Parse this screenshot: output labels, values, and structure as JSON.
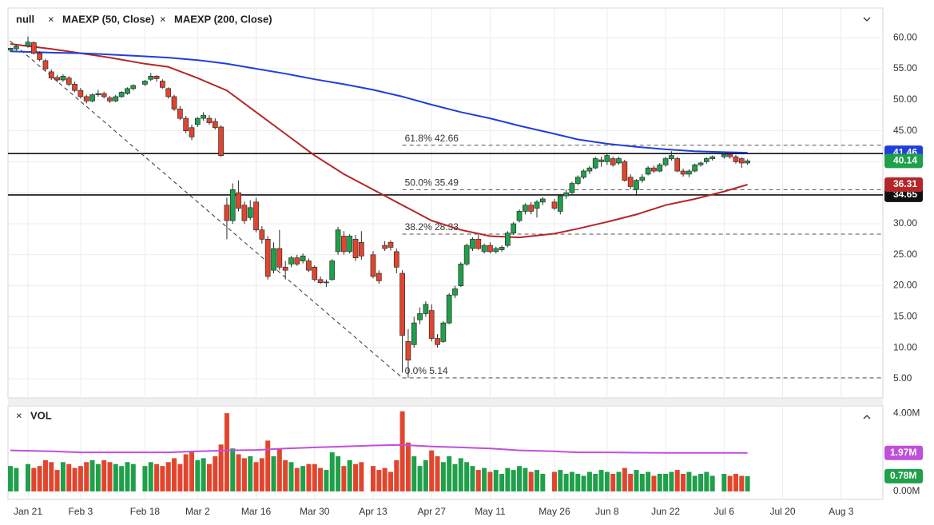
{
  "chart_data": {
    "type": "candlestick",
    "name": "null",
    "up_color": "#1fa04a",
    "down_color": "#e2452d",
    "x": [
      "Jan 16",
      "Jan 17",
      "Jan 21",
      "Jan 22",
      "Jan 23",
      "Jan 24",
      "Jan 27",
      "Jan 28",
      "Jan 29",
      "Jan 30",
      "Jan 31",
      "Feb 3",
      "Feb 4",
      "Feb 5",
      "Feb 6",
      "Feb 7",
      "Feb 10",
      "Feb 11",
      "Feb 12",
      "Feb 13",
      "Feb 14",
      "Feb 18",
      "Feb 19",
      "Feb 20",
      "Feb 21",
      "Feb 24",
      "Feb 25",
      "Feb 26",
      "Feb 27",
      "Feb 28",
      "Mar 2",
      "Mar 3",
      "Mar 4",
      "Mar 5",
      "Mar 6",
      "Mar 9",
      "Mar 10",
      "Mar 11",
      "Mar 12",
      "Mar 13",
      "Mar 16",
      "Mar 17",
      "Mar 18",
      "Mar 19",
      "Mar 20",
      "Mar 23",
      "Mar 24",
      "Mar 25",
      "Mar 26",
      "Mar 27",
      "Mar 30",
      "Mar 31",
      "Apr 1",
      "Apr 2",
      "Apr 3",
      "Apr 6",
      "Apr 7",
      "Apr 8",
      "Apr 9",
      "Apr 13",
      "Apr 14",
      "Apr 15",
      "Apr 16",
      "Apr 17",
      "Apr 20",
      "Apr 21",
      "Apr 22",
      "Apr 23",
      "Apr 24",
      "Apr 27",
      "Apr 28",
      "Apr 29",
      "Apr 30",
      "May 1",
      "May 4",
      "May 5",
      "May 6",
      "May 7",
      "May 8",
      "May 11",
      "May 12",
      "May 13",
      "May 14",
      "May 15",
      "May 18",
      "May 19",
      "May 20",
      "May 21",
      "May 22",
      "May 26",
      "May 27",
      "May 28",
      "May 29",
      "Jun 1",
      "Jun 2",
      "Jun 3",
      "Jun 4",
      "Jun 5",
      "Jun 8",
      "Jun 9",
      "Jun 10",
      "Jun 11",
      "Jun 12",
      "Jun 15",
      "Jun 16",
      "Jun 17",
      "Jun 18",
      "Jun 19",
      "Jun 22",
      "Jun 23",
      "Jun 24",
      "Jun 25",
      "Jun 26",
      "Jun 29",
      "Jun 30",
      "Jul 1",
      "Jul 2",
      "Jul 6",
      "Jul 7",
      "Jul 8",
      "Jul 9",
      "Jul 10"
    ],
    "ohlc": [
      [
        58,
        58.4,
        57.7,
        58.3
      ],
      [
        58.2,
        58.8,
        57.9,
        58.6
      ],
      [
        58.7,
        60.2,
        58.4,
        59.3
      ],
      [
        59.2,
        59.4,
        57.3,
        57.5
      ],
      [
        57.5,
        57.8,
        56.2,
        56.5
      ],
      [
        56.3,
        56.6,
        54.6,
        55
      ],
      [
        54.5,
        54.9,
        53.2,
        53.5
      ],
      [
        53.6,
        54,
        52.8,
        53.2
      ],
      [
        53.2,
        54.1,
        52.9,
        53.8
      ],
      [
        53.5,
        53.8,
        52.2,
        52.5
      ],
      [
        52.5,
        52.9,
        51.2,
        51.5
      ],
      [
        51.5,
        51.9,
        50.2,
        50.5
      ],
      [
        50.5,
        50.8,
        49.4,
        49.8
      ],
      [
        49.8,
        51,
        49.6,
        50.8
      ],
      [
        50.8,
        51.6,
        50.5,
        51
      ],
      [
        51,
        51.3,
        50.2,
        50.5
      ],
      [
        50.3,
        50.6,
        49.5,
        49.8
      ],
      [
        49.8,
        50.8,
        49.6,
        50.5
      ],
      [
        50.5,
        51.4,
        50.3,
        51.2
      ],
      [
        51,
        52,
        50.8,
        51.8
      ],
      [
        51.8,
        52.5,
        51.5,
        52.3
      ],
      [
        52.5,
        53.2,
        52.2,
        53
      ],
      [
        53.3,
        54.3,
        53,
        53.8
      ],
      [
        53.8,
        54,
        52.9,
        53.4
      ],
      [
        53,
        53.3,
        51.8,
        52
      ],
      [
        51.8,
        52,
        50.2,
        50.5
      ],
      [
        50.5,
        50.8,
        48.2,
        48.5
      ],
      [
        48.5,
        49,
        46.7,
        47
      ],
      [
        47,
        47.4,
        44.6,
        45
      ],
      [
        45.5,
        46,
        43.5,
        44
      ],
      [
        46,
        47.2,
        45.6,
        47
      ],
      [
        47,
        48,
        46.6,
        47.5
      ],
      [
        47,
        47.5,
        46,
        46.3
      ],
      [
        46.5,
        47,
        45.2,
        45.5
      ],
      [
        45.6,
        45.9,
        40.8,
        41
      ],
      [
        33,
        34.2,
        27.5,
        30.5
      ],
      [
        30.5,
        36.5,
        30,
        35.5
      ],
      [
        35,
        37,
        32,
        32.5
      ],
      [
        33,
        33.6,
        30,
        30.5
      ],
      [
        31,
        33.8,
        30.6,
        32.6
      ],
      [
        33.5,
        34.2,
        28.6,
        29
      ],
      [
        29,
        29.6,
        26.8,
        27.5
      ],
      [
        27.5,
        28,
        21,
        21.5
      ],
      [
        22.5,
        27,
        22,
        26
      ],
      [
        26,
        29,
        22.5,
        23
      ],
      [
        23,
        24,
        21,
        22.5
      ],
      [
        23.5,
        24.8,
        23,
        24.5
      ],
      [
        24.5,
        25,
        23.2,
        23.5
      ],
      [
        24,
        25.2,
        23.6,
        24.8
      ],
      [
        24,
        24.4,
        22.2,
        22.5
      ],
      [
        23,
        23.3,
        20.7,
        21
      ],
      [
        21,
        21.5,
        20.3,
        20.5
      ],
      [
        20.5,
        21,
        19.8,
        20.6
      ],
      [
        21,
        24.3,
        20.8,
        24
      ],
      [
        25.5,
        29.5,
        25,
        29
      ],
      [
        28,
        28.8,
        25,
        25.5
      ],
      [
        25.5,
        28.3,
        25.2,
        28
      ],
      [
        27.5,
        28.2,
        24,
        24.5
      ],
      [
        27,
        28.8,
        24.2,
        24.8
      ],
      [
        25,
        25.6,
        21.2,
        21.5
      ],
      [
        22,
        22.5,
        20.3,
        20.8
      ],
      [
        26.5,
        27.2,
        25.6,
        26
      ],
      [
        27,
        27.3,
        25.7,
        26.2
      ],
      [
        25.5,
        26,
        22,
        23
      ],
      [
        22,
        22.5,
        6,
        12
      ],
      [
        11,
        13,
        5.14,
        8
      ],
      [
        10.5,
        15,
        10,
        14
      ],
      [
        14.5,
        16.5,
        13.8,
        15.5
      ],
      [
        15.5,
        17.5,
        15,
        17
      ],
      [
        16,
        17,
        11,
        11.5
      ],
      [
        11.5,
        12.2,
        10,
        10.5
      ],
      [
        11,
        14.3,
        10.8,
        14
      ],
      [
        14,
        18.8,
        13.8,
        18.5
      ],
      [
        18.5,
        20,
        18,
        19.5
      ],
      [
        20,
        23.8,
        19.8,
        23.5
      ],
      [
        23.5,
        26.8,
        23.2,
        26.5
      ],
      [
        26,
        27.8,
        25.6,
        27.5
      ],
      [
        27.5,
        28.2,
        25.8,
        26
      ],
      [
        25.5,
        26.8,
        25.2,
        26.5
      ],
      [
        26.5,
        27,
        25.2,
        25.5
      ],
      [
        25.5,
        26.3,
        25.2,
        26
      ],
      [
        25.8,
        26.5,
        25.5,
        26.2
      ],
      [
        26.5,
        28.8,
        26.2,
        28.5
      ],
      [
        28.5,
        30.3,
        28.2,
        30
      ],
      [
        30.5,
        32.3,
        30.2,
        32
      ],
      [
        32,
        33.3,
        31.5,
        33
      ],
      [
        33,
        33.5,
        31.5,
        32
      ],
      [
        32.5,
        33.8,
        31,
        33.5
      ],
      [
        33.5,
        34.3,
        33,
        34
      ],
      [
        33.5,
        34,
        32.2,
        32.5
      ],
      [
        32,
        34.8,
        31.5,
        34.5
      ],
      [
        34.5,
        35.5,
        34,
        35
      ],
      [
        35,
        36.8,
        34.8,
        36.5
      ],
      [
        36.5,
        37.8,
        36.2,
        37.5
      ],
      [
        37.5,
        38.8,
        37.2,
        38.5
      ],
      [
        38.5,
        39.3,
        38,
        39
      ],
      [
        39,
        40.8,
        38.8,
        40.5
      ],
      [
        40,
        40.8,
        39.2,
        40.3
      ],
      [
        40,
        41.3,
        39.5,
        41
      ],
      [
        40.5,
        40.8,
        39.2,
        39.5
      ],
      [
        39.8,
        40.8,
        39.5,
        40.5
      ],
      [
        40,
        40.3,
        36.8,
        37
      ],
      [
        37.5,
        38,
        35.6,
        36
      ],
      [
        35.5,
        37.2,
        34.5,
        37
      ],
      [
        37,
        38,
        36.6,
        37.5
      ],
      [
        38,
        39.3,
        37.8,
        39
      ],
      [
        39,
        39.4,
        38.2,
        38.5
      ],
      [
        38.5,
        39.8,
        38.3,
        39.5
      ],
      [
        39.5,
        40.8,
        39.2,
        40.5
      ],
      [
        40.5,
        41.7,
        40.2,
        41
      ],
      [
        40.5,
        40.8,
        38.3,
        38.5
      ],
      [
        38.5,
        38.9,
        37.6,
        38
      ],
      [
        38,
        38.8,
        37.5,
        38.5
      ],
      [
        38.5,
        39.7,
        38.3,
        39.5
      ],
      [
        39.5,
        40,
        39.2,
        39.8
      ],
      [
        40,
        40.7,
        39.7,
        40.5
      ],
      [
        40.5,
        41,
        40.2,
        40.8
      ],
      [
        40.8,
        41.4,
        40.5,
        41.2
      ],
      [
        41.2,
        41.4,
        40.5,
        40.8
      ],
      [
        40.8,
        41.1,
        39.7,
        40
      ],
      [
        40.5,
        40.7,
        39,
        39.8
      ],
      [
        39.8,
        40.4,
        39.5,
        40.14
      ]
    ],
    "series": [
      {
        "name": "MAEXP (50, Close)",
        "color": "#b3262a",
        "x": [
          "Jan 16",
          "Jan 27",
          "Feb 3",
          "Feb 10",
          "Feb 18",
          "Feb 24",
          "Mar 2",
          "Mar 9",
          "Mar 16",
          "Mar 23",
          "Mar 30",
          "Apr 6",
          "Apr 13",
          "Apr 20",
          "Apr 27",
          "May 4",
          "May 11",
          "May 18",
          "May 26",
          "Jun 1",
          "Jun 8",
          "Jun 15",
          "Jun 22",
          "Jun 29",
          "Jul 6",
          "Jul 10"
        ],
        "values": [
          59,
          58.2,
          57.5,
          56.8,
          55.8,
          55.3,
          53.5,
          51.5,
          48,
          44.5,
          41,
          38,
          35.5,
          33,
          30.5,
          29,
          28,
          27.8,
          28.4,
          29.2,
          30.3,
          31.5,
          33,
          34,
          35.2,
          36.31
        ]
      },
      {
        "name": "MAEXP (200, Close)",
        "color": "#1f3fdc",
        "x": [
          "Jan 16",
          "Jan 27",
          "Feb 3",
          "Feb 10",
          "Feb 18",
          "Feb 24",
          "Mar 2",
          "Mar 9",
          "Mar 16",
          "Mar 23",
          "Mar 30",
          "Apr 6",
          "Apr 13",
          "Apr 20",
          "Apr 27",
          "May 4",
          "May 11",
          "May 18",
          "May 26",
          "Jun 1",
          "Jun 8",
          "Jun 15",
          "Jun 22",
          "Jun 29",
          "Jul 6",
          "Jul 10"
        ],
        "values": [
          57.8,
          57.6,
          57.5,
          57.3,
          57,
          56.8,
          56.4,
          55.8,
          55,
          54.2,
          53.3,
          52.5,
          51.6,
          50.5,
          49.2,
          48,
          47,
          45.8,
          44.5,
          43.6,
          42.9,
          42.4,
          42,
          41.7,
          41.55,
          41.46
        ]
      }
    ],
    "xlim": [
      "Jan 15",
      "Aug 12"
    ],
    "xticks": [
      "Jan 21",
      "Feb 3",
      "Feb 18",
      "Mar 2",
      "Mar 16",
      "Mar 30",
      "Apr 13",
      "Apr 27",
      "May 11",
      "May 26",
      "Jun 8",
      "Jun 22",
      "Jul 6",
      "Jul 20",
      "Aug 3"
    ],
    "ylim": [
      1.9,
      64.8
    ],
    "yticks": [
      {
        "value": 60,
        "label": "60.00"
      },
      {
        "value": 55,
        "label": "55.00"
      },
      {
        "value": 50,
        "label": "50.00"
      },
      {
        "value": 45,
        "label": "45.00"
      },
      {
        "value": 40,
        "label": "40.00"
      },
      {
        "value": 35,
        "label": "35.00"
      },
      {
        "value": 30,
        "label": "30.00"
      },
      {
        "value": 25,
        "label": "25.00"
      },
      {
        "value": 20,
        "label": "20.00"
      },
      {
        "value": 15,
        "label": "15.00"
      },
      {
        "value": 10,
        "label": "10.00"
      },
      {
        "value": 5,
        "label": "5.00"
      }
    ],
    "grid": true,
    "horizontal_lines": [
      41.32,
      34.65
    ],
    "trendline": {
      "x": [
        "Jan 15",
        "Apr 20"
      ],
      "y": [
        60.26,
        5.14
      ]
    },
    "fib_levels": [
      {
        "value": 42.66,
        "label": "61.8% 42.66"
      },
      {
        "value": 35.49,
        "label": "50.0% 35.49"
      },
      {
        "value": 28.33,
        "label": "38.2% 28.33"
      },
      {
        "value": 5.14,
        "label": "0.0% 5.14"
      }
    ],
    "volume": {
      "title": "VOL",
      "values": [
        1.3,
        1.2,
        1.4,
        1.2,
        1.3,
        1.6,
        1.5,
        1.1,
        1.5,
        1.4,
        1.2,
        1.3,
        1.5,
        1.6,
        1.4,
        1.6,
        1.5,
        1.4,
        1.3,
        1.5,
        1.4,
        1.3,
        1.5,
        1.4,
        1.3,
        1.5,
        1.7,
        1.4,
        1.9,
        2.0,
        1.6,
        1.7,
        1.4,
        1.8,
        2.4,
        4.0,
        2.2,
        1.9,
        1.7,
        1.8,
        1.5,
        1.7,
        2.6,
        1.8,
        2.2,
        1.6,
        1.5,
        1.2,
        1.3,
        1.4,
        1.4,
        1.2,
        1.1,
        2.0,
        1.8,
        1.3,
        1.6,
        1.4,
        1.5,
        1.3,
        1.1,
        1.2,
        1.0,
        1.6,
        4.1,
        2.5,
        1.8,
        1.3,
        1.6,
        2.1,
        1.8,
        1.5,
        1.8,
        1.4,
        1.7,
        1.5,
        1.3,
        1.1,
        1.2,
        1.0,
        1.1,
        0.9,
        1.2,
        1.1,
        1.3,
        1.2,
        1.0,
        1.1,
        0.9,
        1.0,
        1.1,
        0.9,
        1.0,
        0.9,
        0.8,
        1.0,
        0.9,
        1.1,
        1.0,
        0.9,
        1.0,
        1.2,
        0.9,
        1.1,
        0.9,
        1.0,
        0.8,
        0.9,
        0.9,
        1.0,
        1.1,
        0.9,
        1.0,
        0.8,
        0.9,
        1.0,
        0.8,
        0.9,
        0.8,
        0.9,
        0.8,
        0.78
      ],
      "ylim": [
        0,
        4.25
      ],
      "yticks": [
        {
          "value": 4,
          "label": "4.00M"
        },
        {
          "value": 0,
          "label": "0.00M"
        }
      ],
      "ma": {
        "color": "#c04fdc",
        "x": [
          "Jan 16",
          "Jan 27",
          "Feb 3",
          "Feb 10",
          "Feb 18",
          "Feb 24",
          "Mar 2",
          "Mar 9",
          "Mar 16",
          "Mar 23",
          "Mar 30",
          "Apr 6",
          "Apr 13",
          "Apr 20",
          "Apr 27",
          "May 4",
          "May 11",
          "May 18",
          "May 26",
          "Jun 1",
          "Jun 8",
          "Jun 15",
          "Jun 22",
          "Jun 29",
          "Jul 6",
          "Jul 10"
        ],
        "values": [
          2.1,
          2.05,
          2.0,
          2.0,
          2.0,
          2.0,
          2.05,
          2.1,
          2.12,
          2.2,
          2.25,
          2.3,
          2.35,
          2.38,
          2.3,
          2.25,
          2.2,
          2.1,
          2.05,
          2.0,
          2.0,
          1.98,
          1.97,
          1.97,
          1.97,
          1.97
        ]
      },
      "markers": [
        {
          "value": 1.97,
          "label": "1.97M",
          "color": "#c04fdc"
        },
        {
          "value": 0.78,
          "label": "0.78M",
          "color": "#1fa04a"
        }
      ]
    }
  }
}
